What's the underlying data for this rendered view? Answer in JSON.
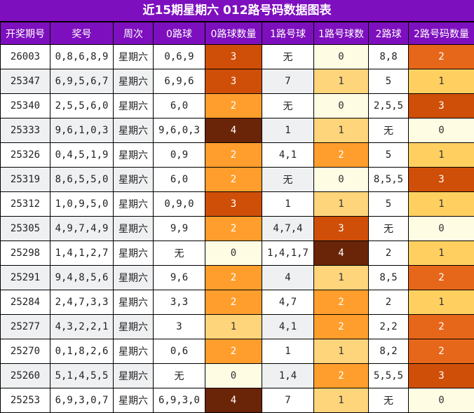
{
  "title": "近15期星期六 012路号码数据图表",
  "headers": [
    "开奖期号",
    "奖号",
    "周次",
    "0路球",
    "0路球数量",
    "1路号球",
    "1路号球数",
    "2路球",
    "2路号码数量"
  ],
  "rows": [
    [
      "26003",
      "0,8,6,8,9",
      "星期六",
      "0,6,9",
      "3",
      "无",
      "0",
      "8,8",
      "2"
    ],
    [
      "25347",
      "6,9,5,6,7",
      "星期六",
      "6,9,6",
      "3",
      "7",
      "1",
      "5",
      "1"
    ],
    [
      "25340",
      "2,5,5,6,0",
      "星期六",
      "6,0",
      "2",
      "无",
      "0",
      "2,5,5",
      "3"
    ],
    [
      "25333",
      "9,6,1,0,3",
      "星期六",
      "9,6,0,3",
      "4",
      "1",
      "1",
      "无",
      "0"
    ],
    [
      "25326",
      "0,4,5,1,9",
      "星期六",
      "0,9",
      "2",
      "4,1",
      "2",
      "5",
      "1"
    ],
    [
      "25319",
      "8,6,5,5,0",
      "星期六",
      "6,0",
      "2",
      "无",
      "0",
      "8,5,5",
      "3"
    ],
    [
      "25312",
      "1,0,9,5,0",
      "星期六",
      "0,9,0",
      "3",
      "1",
      "1",
      "5",
      "1"
    ],
    [
      "25305",
      "4,9,7,4,9",
      "星期六",
      "9,9",
      "2",
      "4,7,4",
      "3",
      "无",
      "0"
    ],
    [
      "25298",
      "1,4,1,2,7",
      "星期六",
      "无",
      "0",
      "1,4,1,7",
      "4",
      "2",
      "1"
    ],
    [
      "25291",
      "9,4,8,5,6",
      "星期六",
      "9,6",
      "2",
      "4",
      "1",
      "8,5",
      "2"
    ],
    [
      "25284",
      "2,4,7,3,3",
      "星期六",
      "3,3",
      "2",
      "4,7",
      "2",
      "2",
      "1"
    ],
    [
      "25277",
      "4,3,2,2,1",
      "星期六",
      "3",
      "1",
      "4,1",
      "2",
      "2,2",
      "2"
    ],
    [
      "25270",
      "0,1,8,2,6",
      "星期六",
      "0,6",
      "2",
      "1",
      "1",
      "8,2",
      "2"
    ],
    [
      "25260",
      "5,1,4,5,5",
      "星期六",
      "无",
      "0",
      "1,4",
      "2",
      "5,5,5",
      "3"
    ],
    [
      "25253",
      "6,9,3,0,7",
      "星期六",
      "6,9,3,0",
      "4",
      "7",
      "1",
      "无",
      "0"
    ]
  ],
  "colors": {
    "header_bg": "#7e0fbe",
    "count_0": "#fffce4",
    "count_1": "#ffd57b",
    "count_2": "#ff9e2c",
    "count_3": "#cf4f08",
    "count_4": "#6a2508"
  }
}
